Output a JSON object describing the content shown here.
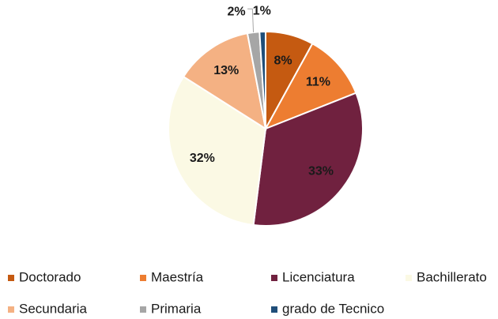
{
  "chart_data": {
    "type": "pie",
    "categories": [
      "Doctorado",
      "Maestría",
      "Licenciatura",
      "Bachillerato",
      "Secundaria",
      "Primaria",
      "grado de Tecnico"
    ],
    "values": [
      8,
      11,
      33,
      32,
      13,
      2,
      1
    ],
    "value_labels": [
      "8%",
      "11%",
      "33%",
      "32%",
      "13%",
      "2%",
      "1%"
    ],
    "colors": [
      "#c55a11",
      "#ed7d31",
      "#70213f",
      "#fbf9e4",
      "#f4b183",
      "#a6a6a6",
      "#1f4e79"
    ],
    "legend": "bottom"
  }
}
